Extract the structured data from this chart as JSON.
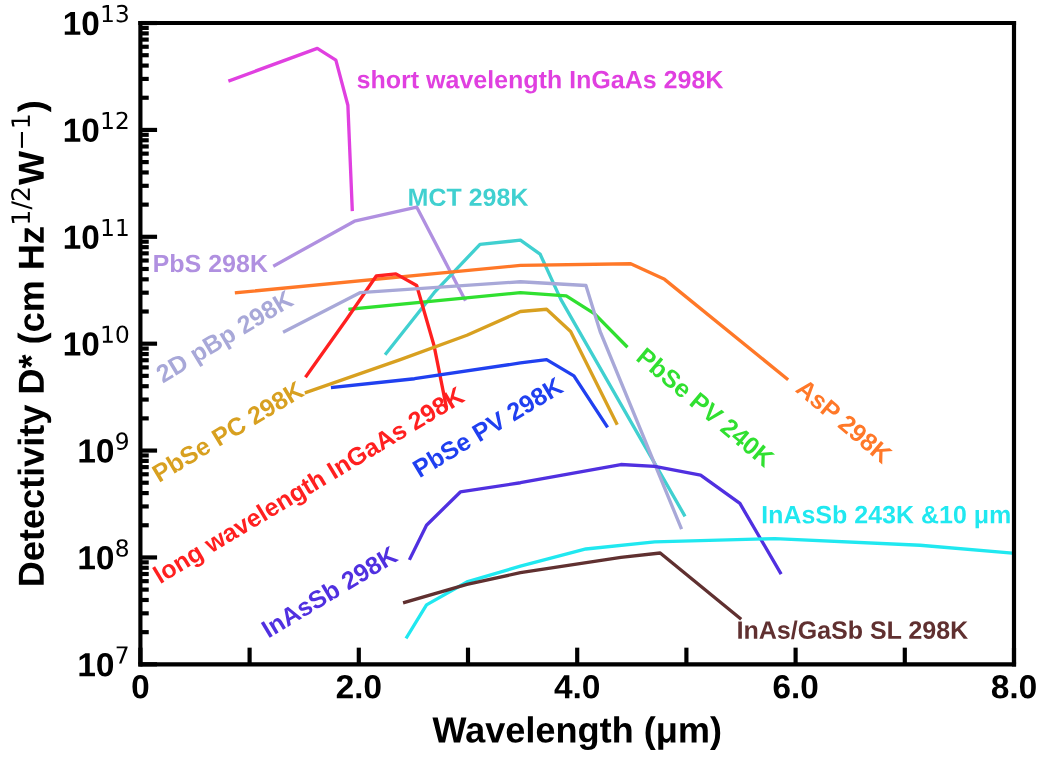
{
  "chart_data": {
    "type": "line",
    "xlabel": "Wavelength (μm)",
    "ylabel": "Detectivity D* (cm Hz$^{1/2}$W$^{−1}$)",
    "log": "y",
    "grid": false,
    "legend": false,
    "marker": "none",
    "line_style": "solid",
    "xlim": [
      0,
      8
    ],
    "ylim": [
      10000000.0,
      10000000000000.0
    ],
    "xticks": [
      {
        "value": 0,
        "label": "0"
      },
      {
        "value": 1,
        "label": null
      },
      {
        "value": 2,
        "label": "2.0"
      },
      {
        "value": 3,
        "label": null
      },
      {
        "value": 4,
        "label": "4.0"
      },
      {
        "value": 5,
        "label": null
      },
      {
        "value": 6,
        "label": "6.0"
      },
      {
        "value": 7,
        "label": null
      },
      {
        "value": 8,
        "label": "8.0"
      }
    ],
    "yticks": [
      {
        "value": 10000000.0,
        "label": "10$^{7}$"
      },
      {
        "value": 100000000.0,
        "label": "10$^{8}$"
      },
      {
        "value": 1000000000.0,
        "label": "10$^{9}$"
      },
      {
        "value": 10000000000.0,
        "label": "10$^{10}$"
      },
      {
        "value": 100000000000.0,
        "label": "10$^{11}$"
      },
      {
        "value": 1000000000000.0,
        "label": "10$^{12}$"
      },
      {
        "value": 10000000000000.0,
        "label": "10$^{13}$"
      }
    ],
    "series": [
      {
        "name": "short wavelength InGaAs 298K",
        "color": "#e040e0",
        "x": [
          0.82,
          1.62,
          1.79,
          1.9,
          1.94
        ],
        "values": [
          2900000000000.0,
          5800000000000.0,
          4500000000000.0,
          1700000000000.0,
          180000000000.0
        ]
      },
      {
        "name": "PbS 298K",
        "color": "#b090e0",
        "x": [
          1.23,
          1.96,
          2.53,
          2.97
        ],
        "values": [
          54000000000.0,
          140000000000.0,
          190000000000.0,
          26000000000.0
        ]
      },
      {
        "name": "MCT 298K",
        "color": "#40d0d0",
        "x": [
          2.25,
          2.69,
          3.11,
          3.48,
          3.66,
          3.85,
          4.98
        ],
        "values": [
          8100000000.0,
          30000000000.0,
          85000000000.0,
          93000000000.0,
          69000000000.0,
          26000000000.0,
          250000000.0
        ]
      },
      {
        "name": "AsP 298K",
        "color": "#ff7828",
        "x": [
          0.88,
          3.48,
          4.49,
          4.8,
          5.92
        ],
        "values": [
          30000000000.0,
          54000000000.0,
          56000000000.0,
          40000000000.0,
          4700000000.0
        ]
      },
      {
        "name": "PbSe PV 240K",
        "color": "#30e030",
        "x": [
          1.92,
          3.48,
          3.9,
          4.16,
          4.45
        ],
        "values": [
          21000000000.0,
          30000000000.0,
          28000000000.0,
          19000000000.0,
          9500000000.0
        ]
      },
      {
        "name": "long wavelength InGaAs 298K",
        "color": "#ff2020",
        "x": [
          1.52,
          1.89,
          2.16,
          2.34,
          2.53,
          2.69,
          2.8
        ],
        "values": [
          5000000000.0,
          17000000000.0,
          43000000000.0,
          45000000000.0,
          35000000000.0,
          9500000000.0,
          2600000000.0
        ]
      },
      {
        "name": "PbSe PC 298K",
        "color": "#d8a020",
        "x": [
          1.52,
          2.38,
          2.99,
          3.48,
          3.72,
          3.94,
          4.36
        ],
        "values": [
          3500000000.0,
          7100000000.0,
          12000000000.0,
          20000000000.0,
          21000000000.0,
          13000000000.0,
          1800000000.0
        ]
      },
      {
        "name": "PbSe PV 298K",
        "color": "#2040f0",
        "x": [
          1.76,
          2.51,
          3.48,
          3.72,
          3.97,
          4.27
        ],
        "values": [
          3900000000.0,
          4700000000.0,
          6600000000.0,
          7100000000.0,
          5000000000.0,
          1700000000.0
        ]
      },
      {
        "name": "2D pBp 298K",
        "color": "#a8a8d8",
        "x": [
          1.32,
          2.01,
          3.48,
          4.08,
          4.21,
          4.95
        ],
        "values": [
          13000000000.0,
          30000000000.0,
          38000000000.0,
          35000000000.0,
          13000000000.0,
          190000000.0
        ]
      },
      {
        "name": "InAsSb 298K",
        "color": "#5030e0",
        "x": [
          2.47,
          2.62,
          2.93,
          3.48,
          4.4,
          4.71,
          5.13,
          5.49,
          5.86
        ],
        "values": [
          98000000.0,
          200000000.0,
          410000000.0,
          500000000.0,
          740000000.0,
          710000000.0,
          590000000.0,
          320000000.0,
          72000000.0
        ]
      },
      {
        "name": "InAsSb 243K &10 μm",
        "color": "#20e8f0",
        "x": [
          2.44,
          2.62,
          2.99,
          3.48,
          4.08,
          4.71,
          5.81,
          7.14,
          7.97
        ],
        "values": [
          18000000.0,
          36000000.0,
          59000000.0,
          83000000.0,
          120000000.0,
          140000000.0,
          150000000.0,
          130000000.0,
          110000000.0
        ]
      },
      {
        "name": "InAs/GaSb SL 298K",
        "color": "#603030",
        "x": [
          2.42,
          2.99,
          3.48,
          4.4,
          4.76,
          5.49
        ],
        "values": [
          38000000.0,
          56000000.0,
          72000000.0,
          100000000.0,
          110000000.0,
          27000000.0
        ]
      }
    ]
  }
}
